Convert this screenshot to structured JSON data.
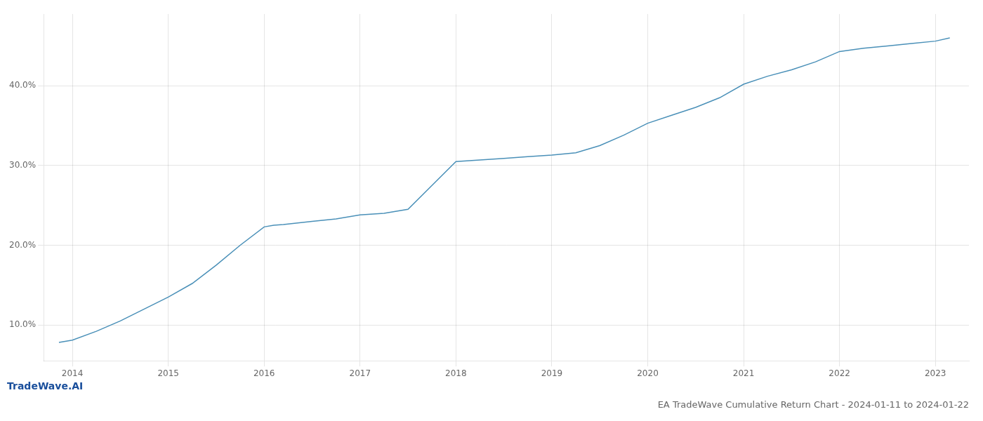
{
  "chart_data": {
    "type": "line",
    "title": "EA TradeWave Cumulative Return Chart - 2024-01-11 to 2024-01-22",
    "annotations": [
      "TradeWave.AI"
    ],
    "x": [
      2013.86,
      2014.0,
      2014.25,
      2014.5,
      2014.75,
      2015.0,
      2015.25,
      2015.5,
      2015.75,
      2016.0,
      2016.1,
      2016.2,
      2016.5,
      2016.75,
      2017.0,
      2017.25,
      2017.5,
      2017.75,
      2018.0,
      2018.25,
      2018.5,
      2018.75,
      2019.0,
      2019.25,
      2019.5,
      2019.75,
      2020.0,
      2020.25,
      2020.5,
      2020.75,
      2021.0,
      2021.25,
      2021.5,
      2021.75,
      2022.0,
      2022.25,
      2022.5,
      2022.75,
      2023.0,
      2023.15
    ],
    "values": [
      7.8,
      8.1,
      9.2,
      10.5,
      12.0,
      13.5,
      15.2,
      17.5,
      20.0,
      22.3,
      22.5,
      22.6,
      23.0,
      23.3,
      23.8,
      24.0,
      24.5,
      27.5,
      30.5,
      30.7,
      30.9,
      31.1,
      31.3,
      31.6,
      32.5,
      33.8,
      35.3,
      36.3,
      37.3,
      38.5,
      40.2,
      41.2,
      42.0,
      43.0,
      44.3,
      44.7,
      45.0,
      45.3,
      45.6,
      46.0
    ],
    "color": "#4a90b8",
    "xlim": [
      2013.7,
      2023.35
    ],
    "ylim": [
      5.5,
      49.0
    ],
    "xticks": [
      2014,
      2015,
      2016,
      2017,
      2018,
      2019,
      2020,
      2021,
      2022,
      2023
    ],
    "yticks": [
      {
        "value": 10.0,
        "label": "10.0%"
      },
      {
        "value": 20.0,
        "label": "20.0%"
      },
      {
        "value": 30.0,
        "label": "30.0%"
      },
      {
        "value": 40.0,
        "label": "40.0%"
      }
    ],
    "grid": true
  }
}
